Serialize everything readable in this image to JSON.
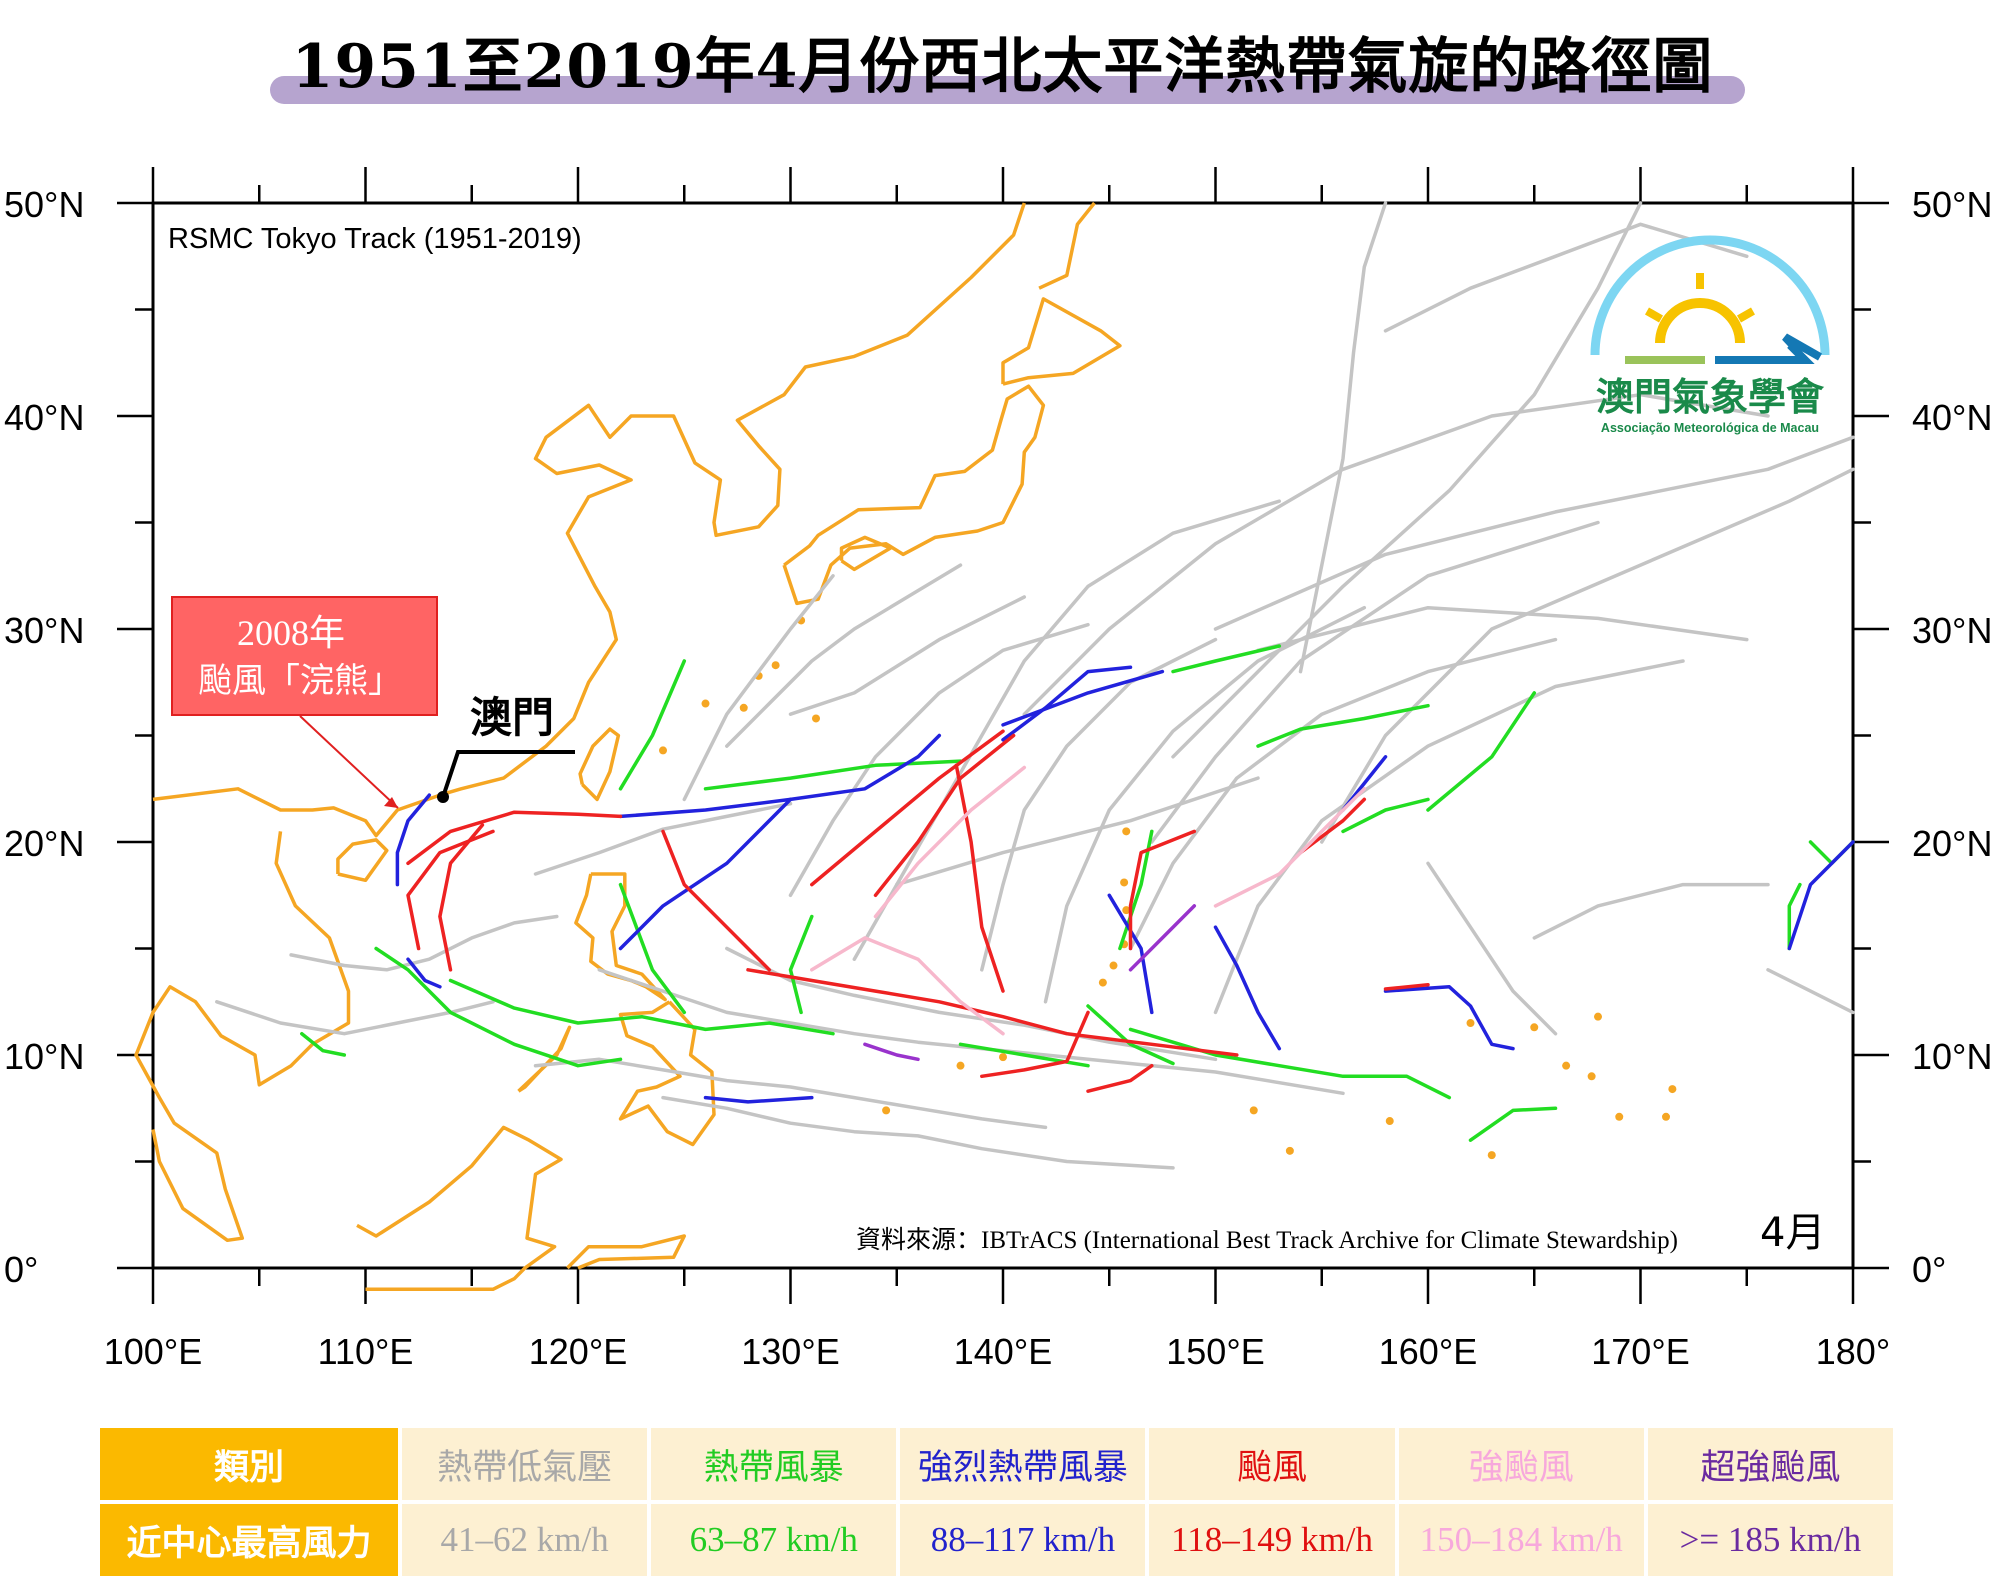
{
  "title": "1951至2019年4月份西北太平洋熱帶氣旋的路徑圖",
  "map": {
    "source_label": "RSMC Tokyo Track (1951-2019)",
    "data_credit": "資料來源：IBTrACS (International Best Track Archive for Climate Stewardship)",
    "month_label": "4月",
    "lat_ticks": [
      "50°N",
      "40°N",
      "30°N",
      "20°N",
      "10°N",
      "0°"
    ],
    "lon_ticks": [
      "100°E",
      "110°E",
      "120°E",
      "130°E",
      "140°E",
      "150°E",
      "160°E",
      "170°E",
      "180°"
    ],
    "macau_label": "澳門",
    "callout": {
      "line1": "2008年",
      "line2": "颱風「浣熊」"
    },
    "coast_color": "#f5a623",
    "track_colors": {
      "td": "#c4c4c4",
      "ts": "#22dd22",
      "sts": "#2222dd",
      "ty": "#ee2222",
      "sty": "#f7b8cc",
      "super": "#9933cc"
    }
  },
  "logo": {
    "name_zh": "澳門氣象學會",
    "name_pt": "Associação Meteorológica de Macau"
  },
  "legend": {
    "header_category": "類別",
    "header_wind": "近中心最高風力",
    "categories": [
      {
        "label": "熱帶低氣壓",
        "wind": "41–62 km/h",
        "color": "#a8a8a8"
      },
      {
        "label": "熱帶風暴",
        "wind": "63–87 km/h",
        "color": "#22cc22"
      },
      {
        "label": "強烈熱帶風暴",
        "wind": "88–117 km/h",
        "color": "#2222cc"
      },
      {
        "label": "颱風",
        "wind": "118–149 km/h",
        "color": "#e01010"
      },
      {
        "label": "強颱風",
        "wind": "150–184 km/h",
        "color": "#f7a8dc"
      },
      {
        "label": "超強颱風",
        "wind": ">= 185 km/h",
        "color": "#6a2aa0"
      }
    ]
  }
}
